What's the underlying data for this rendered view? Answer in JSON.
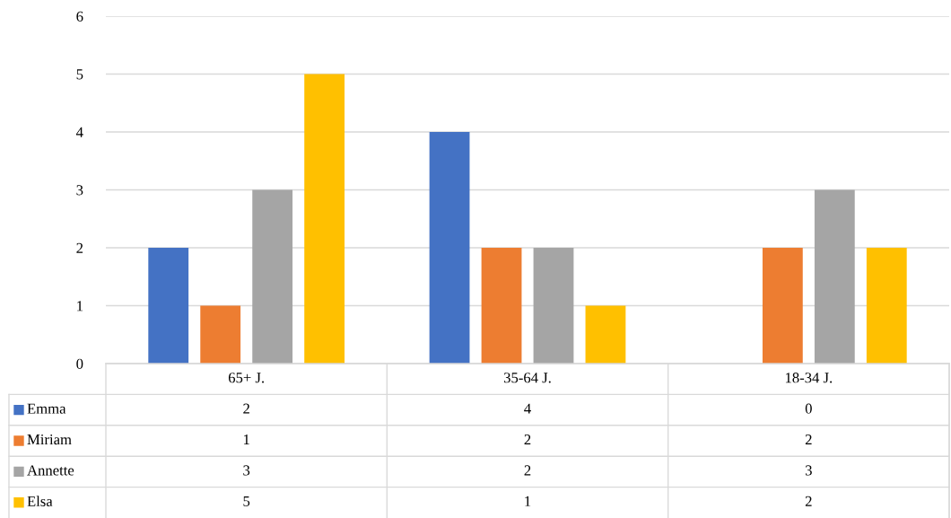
{
  "chart_data": {
    "type": "bar",
    "categories": [
      "65+ J.",
      "35-64 J.",
      "18-34 J."
    ],
    "series": [
      {
        "name": "Emma",
        "color": "#4472c4",
        "values": [
          2,
          4,
          0
        ]
      },
      {
        "name": "Miriam",
        "color": "#ed7d31",
        "values": [
          1,
          2,
          2
        ]
      },
      {
        "name": "Annette",
        "color": "#a5a5a5",
        "values": [
          3,
          2,
          3
        ]
      },
      {
        "name": "Elsa",
        "color": "#ffc000",
        "values": [
          5,
          1,
          2
        ]
      }
    ],
    "ylim": [
      0,
      6
    ],
    "yticks": [
      0,
      1,
      2,
      3,
      4,
      5,
      6
    ],
    "grid": "y",
    "legend": "bottom",
    "data_labels": true
  }
}
